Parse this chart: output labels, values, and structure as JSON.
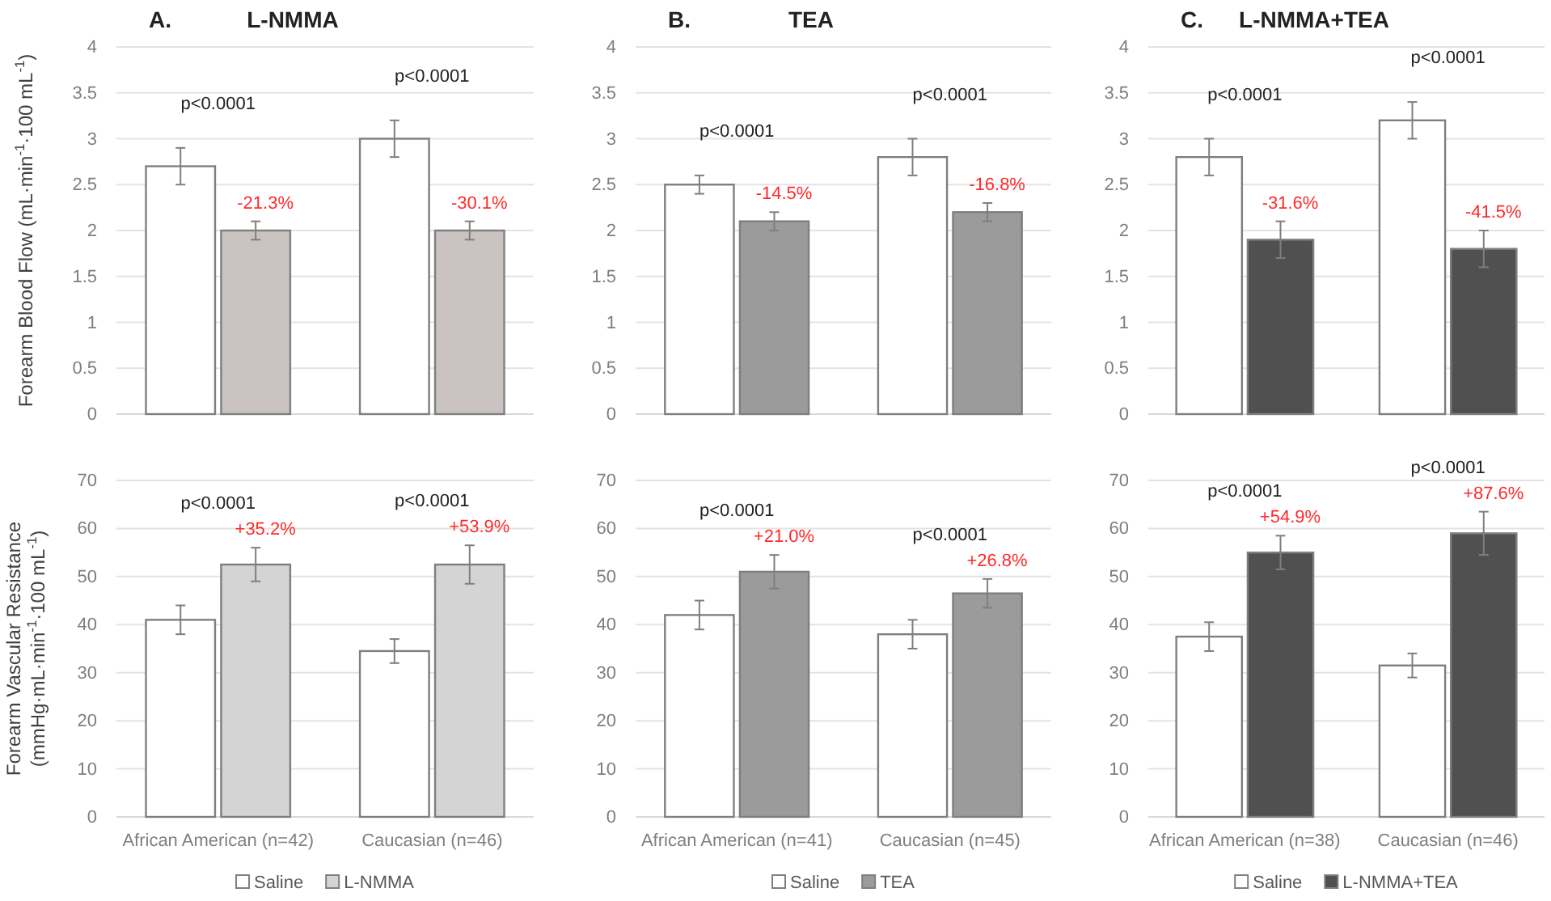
{
  "chart_data": [
    {
      "type": "bar",
      "title": "A.",
      "subtitle": "L-NMMA",
      "ylabel": "Forearm Blood Flow (mL·min$^{-1}$·100 mL$^{-1}$)",
      "categories": [
        null,
        null
      ],
      "tick_labels": "y",
      "ylim": [
        0,
        4
      ],
      "yticks": [
        0,
        0.5,
        1,
        1.5,
        2,
        2.5,
        3,
        3.5,
        4
      ],
      "grid": "y",
      "series": [
        {
          "color": "#ffffff",
          "values": [
            2.7,
            3.0
          ],
          "errors": [
            0.2,
            0.2
          ]
        },
        {
          "color": "#cbc2c2",
          "values": [
            2.0,
            2.0
          ],
          "errors": [
            0.1,
            0.1
          ]
        }
      ],
      "annotations": [
        "p<0.0001",
        "-21.3%",
        "p<0.0001",
        "-30.1%"
      ]
    },
    {
      "type": "bar",
      "title": "B.",
      "subtitle": "TEA",
      "categories": [
        null,
        null
      ],
      "tick_labels": "y",
      "ylim": [
        0,
        4
      ],
      "yticks": [
        0,
        0.5,
        1,
        1.5,
        2,
        2.5,
        3,
        3.5,
        4
      ],
      "grid": "y",
      "series": [
        {
          "color": "#ffffff",
          "values": [
            2.5,
            2.8
          ],
          "errors": [
            0.1,
            0.2
          ]
        },
        {
          "color": "#9b9b9b",
          "values": [
            2.1,
            2.2
          ],
          "errors": [
            0.1,
            0.1
          ]
        }
      ],
      "annotations": [
        "p<0.0001",
        "-14.5%",
        "p<0.0001",
        "-16.8%"
      ]
    },
    {
      "type": "bar",
      "title": "C.",
      "subtitle": "L-NMMA+TEA",
      "categories": [
        null,
        null
      ],
      "tick_labels": "y",
      "ylim": [
        0,
        4
      ],
      "yticks": [
        0,
        0.5,
        1,
        1.5,
        2,
        2.5,
        3,
        3.5,
        4
      ],
      "grid": "y",
      "series": [
        {
          "color": "#ffffff",
          "values": [
            2.8,
            3.2
          ],
          "errors": [
            0.2,
            0.2
          ]
        },
        {
          "color": "#505050",
          "values": [
            1.9,
            1.8
          ],
          "errors": [
            0.2,
            0.2
          ]
        }
      ],
      "annotations": [
        "p<0.0001",
        "-31.6%",
        "p<0.0001",
        "-41.5%"
      ]
    },
    {
      "type": "bar",
      "ylabel": "Forearm Vascular Resistance\n(mmHg·mL·min$^{-1}$·100 mL$^{-1}$)",
      "categories": [
        "African American (n=42)",
        "Caucasian (n=46)"
      ],
      "ylim": [
        0,
        70
      ],
      "yticks": [
        0,
        10,
        20,
        30,
        40,
        50,
        60,
        70
      ],
      "grid": "y",
      "legend": "bottom",
      "series": [
        {
          "name": "Saline",
          "color": "#ffffff",
          "values": [
            41,
            34.5
          ],
          "errors": [
            3,
            2.5
          ]
        },
        {
          "name": "L-NMMA",
          "color": "#d4d4d4",
          "values": [
            52.5,
            52.5
          ],
          "errors": [
            3.5,
            4
          ]
        }
      ],
      "annotations": [
        "p<0.0001",
        "+35.2%",
        "p<0.0001",
        "+53.9%"
      ]
    },
    {
      "type": "bar",
      "categories": [
        "African American (n=41)",
        "Caucasian (n=45)"
      ],
      "ylim": [
        0,
        70
      ],
      "yticks": [
        0,
        10,
        20,
        30,
        40,
        50,
        60,
        70
      ],
      "grid": "y",
      "legend": "bottom",
      "series": [
        {
          "name": "Saline",
          "color": "#ffffff",
          "values": [
            42,
            38
          ],
          "errors": [
            3,
            3
          ]
        },
        {
          "name": "TEA",
          "color": "#9b9b9b",
          "values": [
            51,
            46.5
          ],
          "errors": [
            3.5,
            3
          ]
        }
      ],
      "annotations": [
        "p<0.0001",
        "+21.0%",
        "p<0.0001",
        "+26.8%"
      ]
    },
    {
      "type": "bar",
      "categories": [
        "African American (n=38)",
        "Caucasian (n=46)"
      ],
      "ylim": [
        0,
        70
      ],
      "yticks": [
        0,
        10,
        20,
        30,
        40,
        50,
        60,
        70
      ],
      "grid": "y",
      "legend": "bottom",
      "series": [
        {
          "name": "Saline",
          "color": "#ffffff",
          "values": [
            37.5,
            31.5
          ],
          "errors": [
            3,
            2.5
          ]
        },
        {
          "name": "L-NMMA+TEA",
          "color": "#505050",
          "values": [
            55,
            59
          ],
          "errors": [
            3.5,
            4.5
          ]
        }
      ],
      "annotations": [
        "p<0.0001",
        "+54.9%",
        "p<0.0001",
        "+87.6%"
      ]
    }
  ]
}
